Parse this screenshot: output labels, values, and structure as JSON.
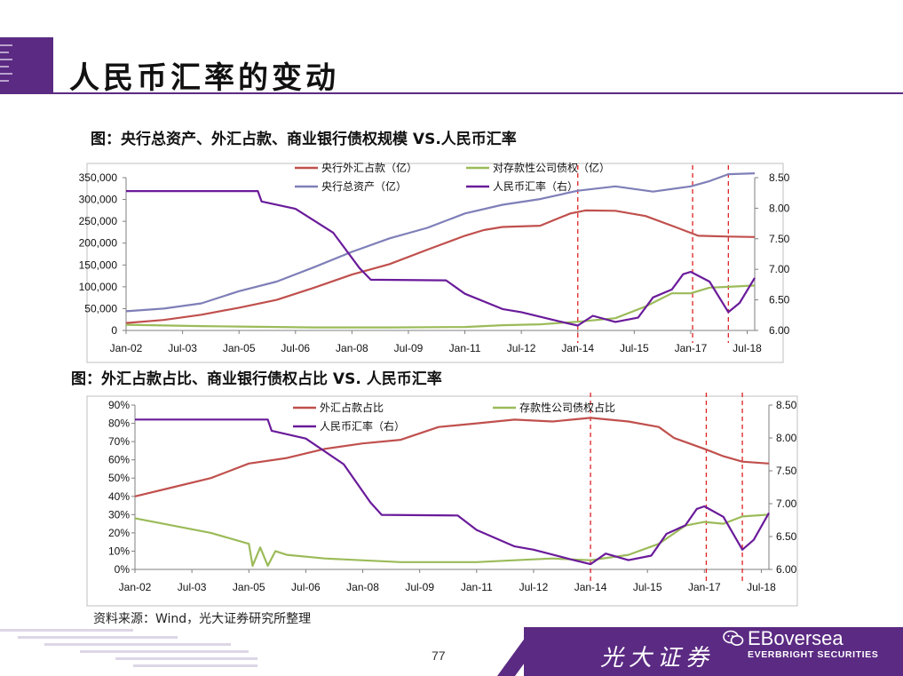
{
  "page": {
    "title": "人民币汇率的变动",
    "page_number": "77",
    "source": "资料来源：Wind，光大证券研究所整理",
    "brand_cn": "光大证券",
    "brand_en": "EBoversea",
    "brand_sub": "EVERBRIGHT SECURITIES",
    "colors": {
      "purple": "#5b2a83",
      "red": "#c0504d",
      "green": "#9bbb59",
      "lavender": "#7f7fb8",
      "violet": "#6a1b9a",
      "ref_line": "#e02020"
    }
  },
  "chart_data": [
    {
      "type": "line",
      "title": "图：央行总资产、外汇占款、商业银行债权规模 VS.人民币汇率",
      "x_ticks": [
        "Jan-02",
        "Jul-03",
        "Jan-05",
        "Jul-06",
        "Jan-08",
        "Jul-09",
        "Jan-11",
        "Jul-12",
        "Jan-14",
        "Jul-15",
        "Jan-17",
        "Jul-18"
      ],
      "x_range": [
        2002.0,
        2018.7
      ],
      "y_left": {
        "ticks": [
          "0",
          "50,000",
          "100,000",
          "150,000",
          "200,000",
          "250,000",
          "300,000",
          "350,000"
        ],
        "range": [
          0,
          350000
        ]
      },
      "y_right": {
        "ticks": [
          "6.00",
          "6.50",
          "7.00",
          "7.50",
          "8.00",
          "8.50"
        ],
        "range": [
          6.0,
          8.5
        ]
      },
      "reference_lines_x": [
        2014.0,
        2017.05,
        2018.0
      ],
      "legend_position": "top",
      "series": [
        {
          "name": "央行外汇占款（亿）",
          "axis": "left",
          "color": "#c0504d",
          "points": [
            [
              2002.0,
              17000
            ],
            [
              2003.0,
              24000
            ],
            [
              2004.0,
              36000
            ],
            [
              2005.0,
              52000
            ],
            [
              2006.0,
              70000
            ],
            [
              2007.0,
              98000
            ],
            [
              2008.0,
              128000
            ],
            [
              2009.0,
              152000
            ],
            [
              2010.0,
              185000
            ],
            [
              2011.0,
              217000
            ],
            [
              2011.5,
              230000
            ],
            [
              2012.0,
              237000
            ],
            [
              2013.0,
              240000
            ],
            [
              2013.8,
              268000
            ],
            [
              2014.2,
              275000
            ],
            [
              2015.0,
              274000
            ],
            [
              2015.8,
              262000
            ],
            [
              2016.5,
              240000
            ],
            [
              2017.2,
              217000
            ],
            [
              2018.0,
              215000
            ],
            [
              2018.7,
              214000
            ]
          ]
        },
        {
          "name": "对存款性公司债权（亿）",
          "axis": "left",
          "color": "#9bbb59",
          "points": [
            [
              2002.0,
              13000
            ],
            [
              2004.0,
              10000
            ],
            [
              2005.0,
              9000
            ],
            [
              2007.0,
              7000
            ],
            [
              2009.0,
              7000
            ],
            [
              2011.0,
              8000
            ],
            [
              2012.0,
              12000
            ],
            [
              2013.0,
              14000
            ],
            [
              2014.0,
              20000
            ],
            [
              2015.0,
              28000
            ],
            [
              2015.8,
              55000
            ],
            [
              2016.5,
              85000
            ],
            [
              2017.0,
              85000
            ],
            [
              2017.5,
              98000
            ],
            [
              2018.0,
              100000
            ],
            [
              2018.7,
              103000
            ]
          ]
        },
        {
          "name": "央行总资产（亿）",
          "axis": "left",
          "color": "#7f7fb8",
          "points": [
            [
              2002.0,
              44000
            ],
            [
              2003.0,
              50000
            ],
            [
              2004.0,
              62000
            ],
            [
              2005.0,
              90000
            ],
            [
              2006.0,
              112000
            ],
            [
              2007.0,
              145000
            ],
            [
              2008.0,
              180000
            ],
            [
              2009.0,
              211000
            ],
            [
              2010.0,
              235000
            ],
            [
              2011.0,
              268000
            ],
            [
              2012.0,
              288000
            ],
            [
              2013.0,
              301000
            ],
            [
              2014.0,
              320000
            ],
            [
              2015.0,
              330000
            ],
            [
              2016.0,
              318000
            ],
            [
              2017.0,
              330000
            ],
            [
              2017.5,
              342000
            ],
            [
              2018.0,
              358000
            ],
            [
              2018.7,
              360000
            ]
          ]
        },
        {
          "name": "人民币汇率（右）",
          "axis": "right",
          "color": "#6a1b9a",
          "points": [
            [
              2002.0,
              8.28
            ],
            [
              2005.5,
              8.28
            ],
            [
              2005.6,
              8.11
            ],
            [
              2006.5,
              7.99
            ],
            [
              2007.5,
              7.6
            ],
            [
              2008.2,
              7.02
            ],
            [
              2008.5,
              6.83
            ],
            [
              2010.5,
              6.82
            ],
            [
              2011.0,
              6.6
            ],
            [
              2012.0,
              6.35
            ],
            [
              2012.5,
              6.3
            ],
            [
              2013.5,
              6.15
            ],
            [
              2014.0,
              6.08
            ],
            [
              2014.4,
              6.24
            ],
            [
              2015.0,
              6.14
            ],
            [
              2015.6,
              6.21
            ],
            [
              2016.0,
              6.54
            ],
            [
              2016.5,
              6.67
            ],
            [
              2016.8,
              6.92
            ],
            [
              2017.0,
              6.96
            ],
            [
              2017.5,
              6.8
            ],
            [
              2018.0,
              6.3
            ],
            [
              2018.3,
              6.45
            ],
            [
              2018.7,
              6.86
            ]
          ]
        }
      ]
    },
    {
      "type": "line",
      "title": "图：外汇占款占比、商业银行债权占比 VS. 人民币汇率",
      "x_ticks": [
        "Jan-02",
        "Jul-03",
        "Jan-05",
        "Jul-06",
        "Jan-08",
        "Jul-09",
        "Jan-11",
        "Jul-12",
        "Jan-14",
        "Jul-15",
        "Jan-17",
        "Jul-18"
      ],
      "x_range": [
        2002.0,
        2018.7
      ],
      "y_left": {
        "ticks": [
          "0%",
          "10%",
          "20%",
          "30%",
          "40%",
          "50%",
          "60%",
          "70%",
          "80%",
          "90%"
        ],
        "range": [
          0,
          90
        ]
      },
      "y_right": {
        "ticks": [
          "6.00",
          "6.50",
          "7.00",
          "7.50",
          "8.00",
          "8.50"
        ],
        "range": [
          6.0,
          8.5
        ]
      },
      "reference_lines_x": [
        2014.0,
        2017.05,
        2018.0
      ],
      "legend_position": "top",
      "series": [
        {
          "name": "外汇占款占比",
          "axis": "left",
          "color": "#c0504d",
          "points": [
            [
              2002.0,
              40
            ],
            [
              2003.0,
              45
            ],
            [
              2004.0,
              50
            ],
            [
              2005.0,
              58
            ],
            [
              2006.0,
              61
            ],
            [
              2007.0,
              66
            ],
            [
              2008.0,
              69
            ],
            [
              2009.0,
              71
            ],
            [
              2010.0,
              78
            ],
            [
              2011.0,
              80
            ],
            [
              2012.0,
              82
            ],
            [
              2013.0,
              81
            ],
            [
              2014.0,
              83
            ],
            [
              2015.0,
              81
            ],
            [
              2015.8,
              78
            ],
            [
              2016.2,
              72
            ],
            [
              2017.0,
              66
            ],
            [
              2017.5,
              62
            ],
            [
              2018.0,
              59
            ],
            [
              2018.7,
              58
            ]
          ]
        },
        {
          "name": "存款性公司债权占比",
          "axis": "left",
          "color": "#9bbb59",
          "points": [
            [
              2002.0,
              28
            ],
            [
              2003.0,
              24
            ],
            [
              2004.0,
              20
            ],
            [
              2005.0,
              14
            ],
            [
              2005.1,
              2
            ],
            [
              2005.3,
              12
            ],
            [
              2005.5,
              2
            ],
            [
              2005.7,
              10
            ],
            [
              2006.0,
              8
            ],
            [
              2007.0,
              6
            ],
            [
              2009.0,
              4
            ],
            [
              2011.0,
              4
            ],
            [
              2012.0,
              5
            ],
            [
              2013.0,
              6
            ],
            [
              2014.0,
              5
            ],
            [
              2015.0,
              8
            ],
            [
              2015.8,
              14
            ],
            [
              2016.5,
              24
            ],
            [
              2017.0,
              26
            ],
            [
              2017.5,
              25
            ],
            [
              2018.0,
              29
            ],
            [
              2018.7,
              30
            ]
          ]
        },
        {
          "name": "人民币汇率（右）",
          "axis": "right",
          "color": "#6a1b9a",
          "points": [
            [
              2002.0,
              8.28
            ],
            [
              2005.5,
              8.28
            ],
            [
              2005.6,
              8.11
            ],
            [
              2006.5,
              7.99
            ],
            [
              2007.5,
              7.6
            ],
            [
              2008.2,
              7.02
            ],
            [
              2008.5,
              6.83
            ],
            [
              2010.5,
              6.82
            ],
            [
              2011.0,
              6.6
            ],
            [
              2012.0,
              6.35
            ],
            [
              2012.5,
              6.3
            ],
            [
              2013.5,
              6.15
            ],
            [
              2014.0,
              6.08
            ],
            [
              2014.4,
              6.24
            ],
            [
              2015.0,
              6.14
            ],
            [
              2015.6,
              6.21
            ],
            [
              2016.0,
              6.54
            ],
            [
              2016.5,
              6.67
            ],
            [
              2016.8,
              6.92
            ],
            [
              2017.0,
              6.96
            ],
            [
              2017.5,
              6.8
            ],
            [
              2018.0,
              6.3
            ],
            [
              2018.3,
              6.45
            ],
            [
              2018.7,
              6.86
            ]
          ]
        }
      ]
    }
  ]
}
